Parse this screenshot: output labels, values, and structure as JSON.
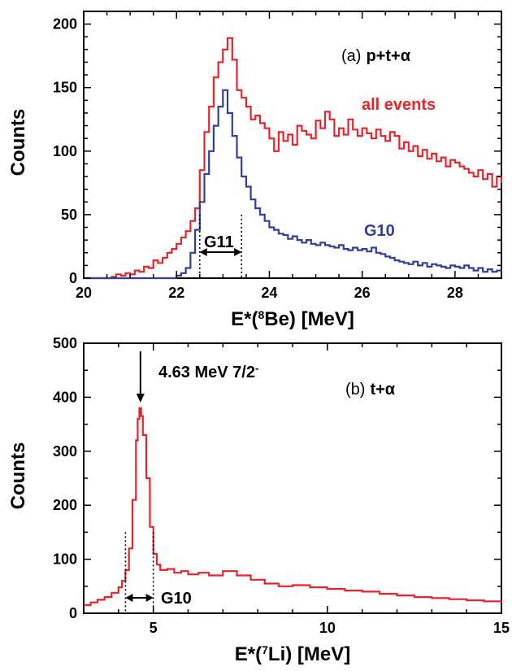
{
  "colors": {
    "red": "#e8232a",
    "blue": "#2f3f9e",
    "black": "#000000"
  },
  "chart_data": [
    {
      "type": "line",
      "panel": "(a)",
      "panel_reaction": "p+t+α",
      "xlabel_main": "E*(",
      "xlabel_sup": "8",
      "xlabel_end": "Be) [MeV]",
      "ylabel": "Counts",
      "xlim": [
        20,
        29
      ],
      "ylim": [
        0,
        210
      ],
      "x_ticks": [
        20,
        22,
        24,
        26,
        28
      ],
      "x_tick_labels": [
        "20",
        "22",
        "24",
        "26",
        "28"
      ],
      "y_ticks": [
        0,
        50,
        100,
        150,
        200
      ],
      "y_tick_labels": [
        "0",
        "50",
        "100",
        "150",
        "200"
      ],
      "series": [
        {
          "name": "all events",
          "color": "#e8232a",
          "points": [
            [
              20.0,
              0
            ],
            [
              20.5,
              0
            ],
            [
              20.6,
              1
            ],
            [
              20.7,
              3
            ],
            [
              20.8,
              2
            ],
            [
              20.9,
              4
            ],
            [
              21.0,
              3
            ],
            [
              21.1,
              6
            ],
            [
              21.2,
              5
            ],
            [
              21.3,
              9
            ],
            [
              21.4,
              8
            ],
            [
              21.5,
              14
            ],
            [
              21.6,
              12
            ],
            [
              21.7,
              16
            ],
            [
              21.8,
              20
            ],
            [
              21.9,
              23
            ],
            [
              22.0,
              27
            ],
            [
              22.1,
              32
            ],
            [
              22.2,
              37
            ],
            [
              22.3,
              45
            ],
            [
              22.4,
              55
            ],
            [
              22.5,
              85
            ],
            [
              22.6,
              115
            ],
            [
              22.7,
              135
            ],
            [
              22.8,
              158
            ],
            [
              22.9,
              170
            ],
            [
              23.0,
              180
            ],
            [
              23.1,
              189
            ],
            [
              23.2,
              172
            ],
            [
              23.3,
              148
            ],
            [
              23.4,
              142
            ],
            [
              23.5,
              135
            ],
            [
              23.6,
              125
            ],
            [
              23.7,
              128
            ],
            [
              23.8,
              122
            ],
            [
              23.9,
              118
            ],
            [
              24.0,
              110
            ],
            [
              24.1,
              100
            ],
            [
              24.2,
              115
            ],
            [
              24.3,
              108
            ],
            [
              24.4,
              113
            ],
            [
              24.5,
              105
            ],
            [
              24.6,
              120
            ],
            [
              24.7,
              116
            ],
            [
              24.8,
              113
            ],
            [
              24.9,
              110
            ],
            [
              25.0,
              124
            ],
            [
              25.1,
              118
            ],
            [
              25.2,
              131
            ],
            [
              25.3,
              125
            ],
            [
              25.4,
              112
            ],
            [
              25.5,
              118
            ],
            [
              25.6,
              113
            ],
            [
              25.7,
              125
            ],
            [
              25.8,
              117
            ],
            [
              25.9,
              112
            ],
            [
              26.0,
              118
            ],
            [
              26.1,
              114
            ],
            [
              26.2,
              110
            ],
            [
              26.3,
              117
            ],
            [
              26.4,
              112
            ],
            [
              26.5,
              108
            ],
            [
              26.6,
              115
            ],
            [
              26.7,
              112
            ],
            [
              26.8,
              102
            ],
            [
              26.9,
              107
            ],
            [
              27.0,
              100
            ],
            [
              27.1,
              104
            ],
            [
              27.2,
              96
            ],
            [
              27.3,
              101
            ],
            [
              27.4,
              94
            ],
            [
              27.5,
              98
            ],
            [
              27.6,
              92
            ],
            [
              27.7,
              95
            ],
            [
              27.8,
              88
            ],
            [
              27.9,
              93
            ],
            [
              28.0,
              91
            ],
            [
              28.1,
              88
            ],
            [
              28.2,
              86
            ],
            [
              28.3,
              83
            ],
            [
              28.4,
              80
            ],
            [
              28.5,
              85
            ],
            [
              28.6,
              78
            ],
            [
              28.7,
              82
            ],
            [
              28.8,
              72
            ],
            [
              28.9,
              80
            ],
            [
              29.0,
              75
            ]
          ]
        },
        {
          "name": "G10",
          "color": "#2f3f9e",
          "points": [
            [
              20.0,
              0
            ],
            [
              21.9,
              0
            ],
            [
              22.0,
              2
            ],
            [
              22.1,
              4
            ],
            [
              22.2,
              8
            ],
            [
              22.3,
              20
            ],
            [
              22.4,
              38
            ],
            [
              22.5,
              60
            ],
            [
              22.6,
              82
            ],
            [
              22.7,
              100
            ],
            [
              22.8,
              120
            ],
            [
              22.9,
              135
            ],
            [
              23.0,
              148
            ],
            [
              23.1,
              130
            ],
            [
              23.2,
              112
            ],
            [
              23.3,
              95
            ],
            [
              23.4,
              80
            ],
            [
              23.5,
              72
            ],
            [
              23.6,
              62
            ],
            [
              23.7,
              55
            ],
            [
              23.8,
              50
            ],
            [
              23.9,
              45
            ],
            [
              24.0,
              40
            ],
            [
              24.1,
              38
            ],
            [
              24.2,
              35
            ],
            [
              24.3,
              34
            ],
            [
              24.4,
              31
            ],
            [
              24.5,
              33
            ],
            [
              24.6,
              30
            ],
            [
              24.7,
              28
            ],
            [
              24.8,
              30
            ],
            [
              24.9,
              27
            ],
            [
              25.0,
              26
            ],
            [
              25.1,
              28
            ],
            [
              25.2,
              26
            ],
            [
              25.3,
              25
            ],
            [
              25.4,
              24
            ],
            [
              25.5,
              26
            ],
            [
              25.6,
              23
            ],
            [
              25.7,
              22
            ],
            [
              25.8,
              24
            ],
            [
              25.9,
              22
            ],
            [
              26.0,
              23
            ],
            [
              26.1,
              21
            ],
            [
              26.2,
              24
            ],
            [
              26.3,
              20
            ],
            [
              26.4,
              19
            ],
            [
              26.5,
              17
            ],
            [
              26.6,
              16
            ],
            [
              26.7,
              14
            ],
            [
              26.8,
              13
            ],
            [
              26.9,
              12
            ],
            [
              27.0,
              11
            ],
            [
              27.1,
              13
            ],
            [
              27.2,
              10
            ],
            [
              27.3,
              12
            ],
            [
              27.4,
              9
            ],
            [
              27.5,
              11
            ],
            [
              27.6,
              10
            ],
            [
              27.7,
              9
            ],
            [
              27.8,
              8
            ],
            [
              27.9,
              10
            ],
            [
              28.0,
              9
            ],
            [
              28.1,
              8
            ],
            [
              28.2,
              10
            ],
            [
              28.3,
              8
            ],
            [
              28.4,
              6
            ],
            [
              28.5,
              8
            ],
            [
              28.6,
              5
            ],
            [
              28.7,
              7
            ],
            [
              28.8,
              5
            ],
            [
              28.9,
              6
            ],
            [
              29.0,
              5
            ]
          ]
        }
      ],
      "gate": {
        "label": "G11",
        "x_range": [
          22.5,
          23.4
        ],
        "line_top_y": [
          50,
          50
        ]
      }
    },
    {
      "type": "line",
      "panel": "(b)",
      "panel_reaction": "t+α",
      "xlabel_main": "E*(",
      "xlabel_sup": "7",
      "xlabel_end": "Li) [MeV]",
      "ylabel": "Counts",
      "xlim": [
        3,
        15
      ],
      "ylim": [
        0,
        500
      ],
      "x_ticks": [
        5,
        10,
        15
      ],
      "x_tick_labels": [
        "5",
        "10",
        "15"
      ],
      "y_ticks": [
        0,
        100,
        200,
        300,
        400,
        500
      ],
      "y_tick_labels": [
        "0",
        "100",
        "200",
        "300",
        "400",
        "500"
      ],
      "series": [
        {
          "name": "",
          "color": "#e8232a",
          "points": [
            [
              3.0,
              15
            ],
            [
              3.2,
              20
            ],
            [
              3.4,
              25
            ],
            [
              3.6,
              30
            ],
            [
              3.8,
              38
            ],
            [
              4.0,
              48
            ],
            [
              4.1,
              60
            ],
            [
              4.2,
              80
            ],
            [
              4.3,
              120
            ],
            [
              4.4,
              210
            ],
            [
              4.5,
              320
            ],
            [
              4.55,
              360
            ],
            [
              4.6,
              380
            ],
            [
              4.65,
              365
            ],
            [
              4.7,
              330
            ],
            [
              4.8,
              250
            ],
            [
              4.9,
              160
            ],
            [
              5.0,
              110
            ],
            [
              5.1,
              90
            ],
            [
              5.2,
              80
            ],
            [
              5.4,
              82
            ],
            [
              5.6,
              75
            ],
            [
              5.8,
              78
            ],
            [
              6.0,
              72
            ],
            [
              6.3,
              75
            ],
            [
              6.6,
              70
            ],
            [
              7.0,
              78
            ],
            [
              7.4,
              70
            ],
            [
              7.8,
              62
            ],
            [
              8.2,
              55
            ],
            [
              8.6,
              50
            ],
            [
              9.0,
              52
            ],
            [
              9.5,
              48
            ],
            [
              10.0,
              45
            ],
            [
              10.5,
              42
            ],
            [
              11.0,
              40
            ],
            [
              11.5,
              36
            ],
            [
              12.0,
              33
            ],
            [
              12.5,
              30
            ],
            [
              13.0,
              28
            ],
            [
              13.5,
              26
            ],
            [
              14.0,
              24
            ],
            [
              14.5,
              22
            ],
            [
              15.0,
              20
            ]
          ]
        }
      ],
      "gate": {
        "label": "G10",
        "x_range": [
          4.2,
          5.0
        ],
        "line_top_y": [
          150,
          150
        ]
      },
      "peak_annotation": {
        "label": "4.63 MeV 7/2",
        "superscript": "-",
        "x": 4.63
      }
    }
  ]
}
